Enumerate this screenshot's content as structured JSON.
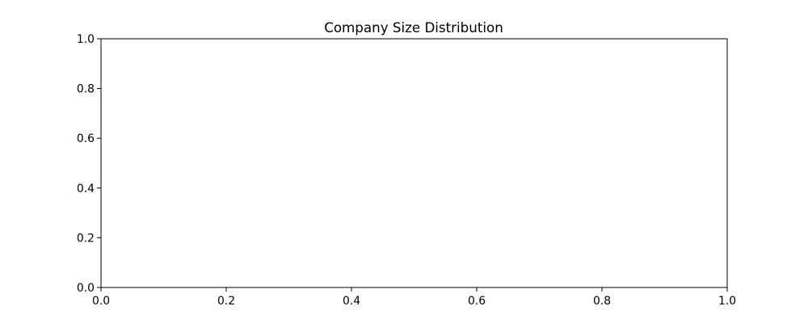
{
  "chart_data": {
    "type": "bar",
    "title": "Company Size Distribution",
    "xlabel": "",
    "ylabel": "",
    "categories": [],
    "values": [],
    "xlim": [
      0.0,
      1.0
    ],
    "ylim": [
      0.0,
      1.0
    ],
    "x_ticks": [
      "0.0",
      "0.2",
      "0.4",
      "0.6",
      "0.8",
      "1.0"
    ],
    "y_ticks": [
      "0.0",
      "0.2",
      "0.4",
      "0.6",
      "0.8",
      "1.0"
    ],
    "grid": false,
    "legend": "none",
    "colors": {
      "axes": "#000000",
      "background": "#ffffff"
    }
  }
}
